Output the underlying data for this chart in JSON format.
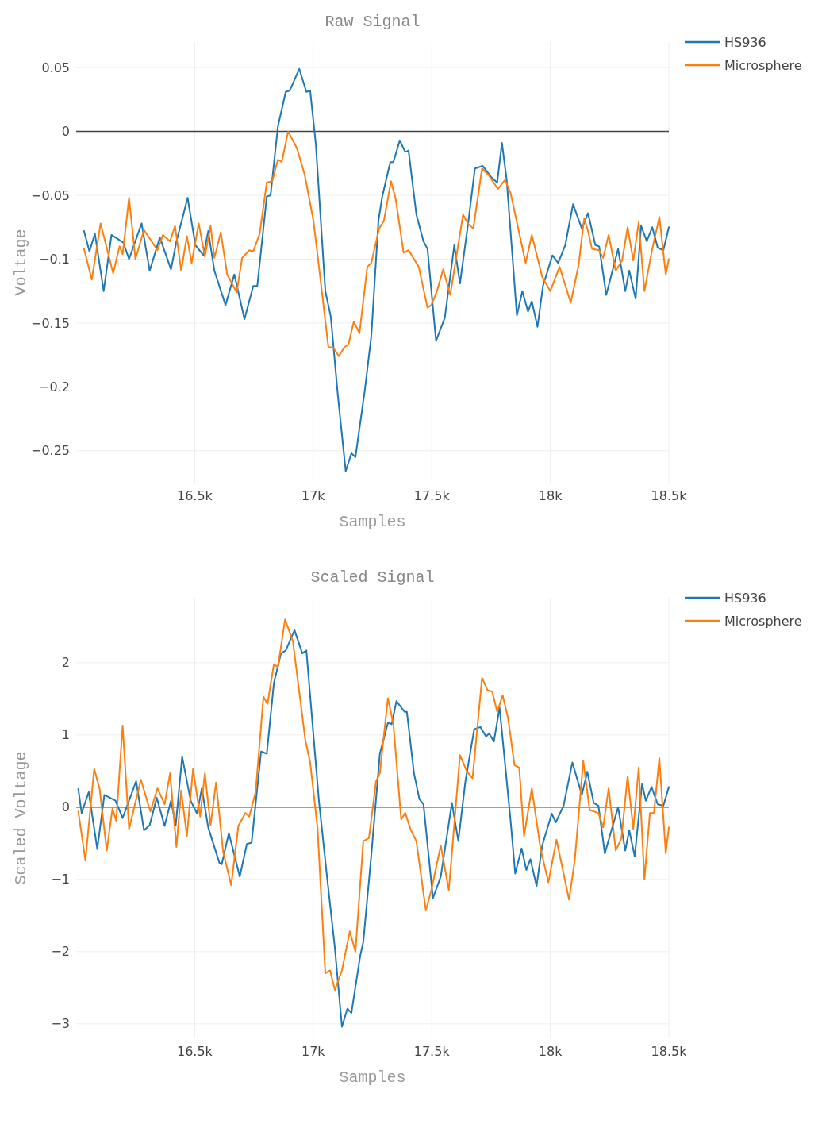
{
  "chart_data": [
    {
      "type": "line",
      "title": "Raw Signal",
      "xlabel": "Samples",
      "ylabel": "Voltage",
      "legend": "top right",
      "grid": true,
      "xlim": [
        16000,
        18500
      ],
      "xticks": [
        {
          "value": 16500,
          "label": "16.5k"
        },
        {
          "value": 17000,
          "label": "17k"
        },
        {
          "value": 17500,
          "label": "17.5k"
        },
        {
          "value": 18000,
          "label": "18k"
        },
        {
          "value": 18500,
          "label": "18.5k"
        }
      ],
      "ylim": [
        -0.275,
        0.07
      ],
      "yticks": [
        0.05,
        0,
        {
          "value": -0.05,
          "label": "−0.05"
        },
        {
          "value": -0.1,
          "label": "−0.1"
        },
        {
          "value": -0.15,
          "label": "−0.15"
        },
        {
          "value": -0.2,
          "label": "−0.2"
        },
        {
          "value": -0.25,
          "label": "−0.25"
        }
      ],
      "ref_lines": [
        {
          "axis": "y",
          "value": 0,
          "color": "#444444"
        }
      ],
      "series": [
        {
          "name": "HS936",
          "color": "#1f77b4",
          "x": [
            16033,
            16056,
            16079,
            16116,
            16149,
            16199,
            16223,
            16276,
            16310,
            16353,
            16400,
            16423,
            16470,
            16503,
            16537,
            16557,
            16583,
            16630,
            16667,
            16710,
            16747,
            16764,
            16804,
            16820,
            16851,
            16884,
            16901,
            16941,
            16971,
            16987,
            17011,
            17051,
            17074,
            17104,
            17137,
            17161,
            17178,
            17218,
            17245,
            17275,
            17291,
            17325,
            17338,
            17365,
            17388,
            17402,
            17435,
            17465,
            17482,
            17518,
            17555,
            17595,
            17619,
            17652,
            17682,
            17715,
            17752,
            17776,
            17796,
            17816,
            17859,
            17882,
            17906,
            17922,
            17946,
            17969,
            18009,
            18033,
            18063,
            18096,
            18133,
            18159,
            18190,
            18206,
            18236,
            18286,
            18316,
            18333,
            18360,
            18383,
            18407,
            18430,
            18453,
            18477,
            18500
          ],
          "values": [
            -0.078,
            -0.094,
            -0.08,
            -0.125,
            -0.081,
            -0.087,
            -0.1,
            -0.072,
            -0.109,
            -0.083,
            -0.108,
            -0.086,
            -0.052,
            -0.089,
            -0.097,
            -0.078,
            -0.109,
            -0.136,
            -0.112,
            -0.147,
            -0.121,
            -0.121,
            -0.051,
            -0.05,
            0.004,
            0.031,
            0.032,
            0.049,
            0.031,
            0.032,
            -0.01,
            -0.125,
            -0.145,
            -0.207,
            -0.266,
            -0.252,
            -0.255,
            -0.202,
            -0.16,
            -0.07,
            -0.051,
            -0.024,
            -0.024,
            -0.007,
            -0.016,
            -0.015,
            -0.065,
            -0.086,
            -0.092,
            -0.164,
            -0.146,
            -0.089,
            -0.119,
            -0.074,
            -0.029,
            -0.027,
            -0.036,
            -0.04,
            -0.009,
            -0.038,
            -0.144,
            -0.125,
            -0.141,
            -0.133,
            -0.153,
            -0.121,
            -0.097,
            -0.103,
            -0.089,
            -0.057,
            -0.076,
            -0.064,
            -0.089,
            -0.09,
            -0.128,
            -0.092,
            -0.125,
            -0.109,
            -0.131,
            -0.074,
            -0.086,
            -0.075,
            -0.091,
            -0.093,
            -0.075
          ]
        },
        {
          "name": "Microsphere",
          "color": "#ff7f0e",
          "x": [
            16033,
            16066,
            16103,
            16156,
            16183,
            16196,
            16223,
            16250,
            16286,
            16343,
            16366,
            16396,
            16417,
            16443,
            16467,
            16487,
            16517,
            16543,
            16567,
            16583,
            16610,
            16637,
            16677,
            16700,
            16730,
            16747,
            16774,
            16804,
            16827,
            16851,
            16867,
            16894,
            16931,
            16964,
            17001,
            17028,
            17064,
            17084,
            17108,
            17131,
            17148,
            17171,
            17195,
            17228,
            17245,
            17278,
            17298,
            17328,
            17348,
            17381,
            17402,
            17445,
            17482,
            17498,
            17522,
            17548,
            17578,
            17632,
            17652,
            17675,
            17712,
            17739,
            17779,
            17809,
            17832,
            17859,
            17896,
            17922,
            17966,
            18000,
            18039,
            18086,
            18119,
            18143,
            18159,
            18176,
            18206,
            18223,
            18246,
            18276,
            18303,
            18326,
            18350,
            18373,
            18397,
            18430,
            18460,
            18487,
            18500
          ],
          "values": [
            -0.092,
            -0.116,
            -0.072,
            -0.111,
            -0.09,
            -0.096,
            -0.052,
            -0.1,
            -0.077,
            -0.093,
            -0.081,
            -0.086,
            -0.074,
            -0.109,
            -0.082,
            -0.103,
            -0.072,
            -0.098,
            -0.074,
            -0.099,
            -0.079,
            -0.112,
            -0.126,
            -0.099,
            -0.093,
            -0.094,
            -0.08,
            -0.04,
            -0.039,
            -0.022,
            -0.024,
            0,
            -0.013,
            -0.034,
            -0.07,
            -0.112,
            -0.169,
            -0.169,
            -0.176,
            -0.169,
            -0.167,
            -0.149,
            -0.158,
            -0.106,
            -0.103,
            -0.076,
            -0.07,
            -0.039,
            -0.053,
            -0.095,
            -0.093,
            -0.106,
            -0.138,
            -0.136,
            -0.125,
            -0.108,
            -0.128,
            -0.065,
            -0.072,
            -0.076,
            -0.029,
            -0.034,
            -0.045,
            -0.038,
            -0.048,
            -0.071,
            -0.103,
            -0.081,
            -0.114,
            -0.125,
            -0.106,
            -0.134,
            -0.105,
            -0.068,
            -0.078,
            -0.092,
            -0.093,
            -0.099,
            -0.081,
            -0.109,
            -0.101,
            -0.075,
            -0.101,
            -0.071,
            -0.125,
            -0.092,
            -0.067,
            -0.112,
            -0.1
          ]
        }
      ]
    },
    {
      "type": "line",
      "title": "Scaled Signal",
      "xlabel": "Samples",
      "ylabel": "Scaled Voltage",
      "legend": "top right",
      "grid": true,
      "xlim": [
        16000,
        18500
      ],
      "xticks": [
        {
          "value": 16500,
          "label": "16.5k"
        },
        {
          "value": 17000,
          "label": "17k"
        },
        {
          "value": 17500,
          "label": "17.5k"
        },
        {
          "value": 18000,
          "label": "18k"
        },
        {
          "value": 18500,
          "label": "18.5k"
        }
      ],
      "ylim": [
        -3.2,
        2.9
      ],
      "yticks": [
        2,
        1,
        0,
        {
          "value": -1,
          "label": "−1"
        },
        {
          "value": -2,
          "label": "−2"
        },
        {
          "value": -3,
          "label": "−3"
        }
      ],
      "ref_lines": [
        {
          "axis": "y",
          "value": 0,
          "color": "#444444"
        }
      ],
      "series": [
        {
          "name": "HS936",
          "color": "#1f77b4",
          "x": [
            16009,
            16023,
            16053,
            16089,
            16119,
            16166,
            16196,
            16253,
            16286,
            16310,
            16340,
            16373,
            16400,
            16420,
            16447,
            16483,
            16510,
            16530,
            16557,
            16604,
            16614,
            16644,
            16690,
            16720,
            16740,
            16780,
            16804,
            16834,
            16864,
            16884,
            16921,
            16954,
            16971,
            17024,
            17058,
            17091,
            17121,
            17144,
            17161,
            17198,
            17211,
            17245,
            17281,
            17315,
            17331,
            17351,
            17385,
            17395,
            17425,
            17448,
            17465,
            17505,
            17538,
            17585,
            17612,
            17642,
            17679,
            17705,
            17729,
            17742,
            17762,
            17786,
            17832,
            17852,
            17879,
            17899,
            17916,
            17942,
            17966,
            18006,
            18023,
            18056,
            18093,
            18133,
            18156,
            18183,
            18203,
            18230,
            18286,
            18316,
            18333,
            18356,
            18387,
            18403,
            18427,
            18453,
            18477,
            18500
          ],
          "values": [
            0.25,
            -0.08,
            0.21,
            -0.58,
            0.17,
            0.09,
            -0.15,
            0.36,
            -0.32,
            -0.25,
            0.13,
            -0.26,
            0.09,
            -0.25,
            0.7,
            0.09,
            -0.09,
            0.26,
            -0.28,
            -0.77,
            -0.79,
            -0.36,
            -0.96,
            -0.51,
            -0.49,
            0.77,
            0.74,
            1.72,
            2.13,
            2.17,
            2.45,
            2.13,
            2.17,
            0.09,
            -0.96,
            -1.94,
            -3.04,
            -2.79,
            -2.85,
            -2.06,
            -1.87,
            -0.66,
            0.74,
            1.17,
            1.15,
            1.47,
            1.32,
            1.32,
            0.47,
            0.11,
            0.04,
            -1.26,
            -0.96,
            0.06,
            -0.47,
            0.36,
            1.08,
            1.11,
            0.98,
            1.02,
            0.91,
            1.38,
            -0.17,
            -0.92,
            -0.57,
            -0.87,
            -0.72,
            -1.09,
            -0.53,
            -0.09,
            -0.21,
            0.02,
            0.62,
            0.17,
            0.49,
            0.06,
            0.02,
            -0.64,
            0,
            -0.6,
            -0.32,
            -0.68,
            0.32,
            0.09,
            0.28,
            0.04,
            0.02,
            0.28
          ]
        },
        {
          "name": "Microsphere",
          "color": "#ff7f0e",
          "x": [
            16009,
            16039,
            16076,
            16099,
            16129,
            16153,
            16169,
            16196,
            16223,
            16273,
            16313,
            16343,
            16373,
            16396,
            16423,
            16443,
            16467,
            16493,
            16523,
            16543,
            16567,
            16590,
            16620,
            16654,
            16684,
            16714,
            16730,
            16757,
            16790,
            16807,
            16834,
            16851,
            16881,
            16914,
            16967,
            16987,
            17018,
            17051,
            17071,
            17091,
            17121,
            17154,
            17178,
            17211,
            17235,
            17265,
            17281,
            17315,
            17338,
            17371,
            17388,
            17412,
            17435,
            17475,
            17498,
            17538,
            17572,
            17619,
            17649,
            17672,
            17712,
            17735,
            17755,
            17776,
            17799,
            17822,
            17849,
            17869,
            17889,
            17922,
            17959,
            17992,
            18026,
            18079,
            18103,
            18139,
            18166,
            18203,
            18223,
            18246,
            18276,
            18300,
            18326,
            18350,
            18373,
            18397,
            18420,
            18437,
            18460,
            18487,
            18500
          ],
          "values": [
            -0.06,
            -0.74,
            0.53,
            0.25,
            -0.6,
            -0.02,
            -0.19,
            1.13,
            -0.3,
            0.38,
            -0.06,
            0.26,
            0.04,
            0.47,
            -0.55,
            0.23,
            -0.4,
            0.53,
            -0.13,
            0.47,
            -0.25,
            0.34,
            -0.62,
            -1.08,
            -0.26,
            -0.08,
            -0.13,
            0.21,
            1.53,
            1.43,
            1.98,
            1.94,
            2.6,
            2.3,
            0.92,
            0.62,
            -0.28,
            -2.3,
            -2.26,
            -2.53,
            -2.26,
            -1.72,
            -2,
            -0.47,
            -0.43,
            0.36,
            0.47,
            1.51,
            1.15,
            -0.17,
            -0.08,
            -0.32,
            -0.47,
            -1.43,
            -1.15,
            -0.53,
            -1.15,
            0.72,
            0.49,
            0.4,
            1.79,
            1.62,
            1.6,
            1.32,
            1.55,
            1.23,
            0.58,
            0.55,
            -0.4,
            0.26,
            -0.58,
            -1.04,
            -0.45,
            -1.28,
            -0.74,
            0.64,
            -0.04,
            -0.08,
            -0.28,
            0.26,
            -0.6,
            -0.43,
            0.43,
            -0.3,
            0.55,
            -1,
            -0.08,
            -0.08,
            0.68,
            -0.64,
            -0.28
          ]
        }
      ]
    }
  ]
}
